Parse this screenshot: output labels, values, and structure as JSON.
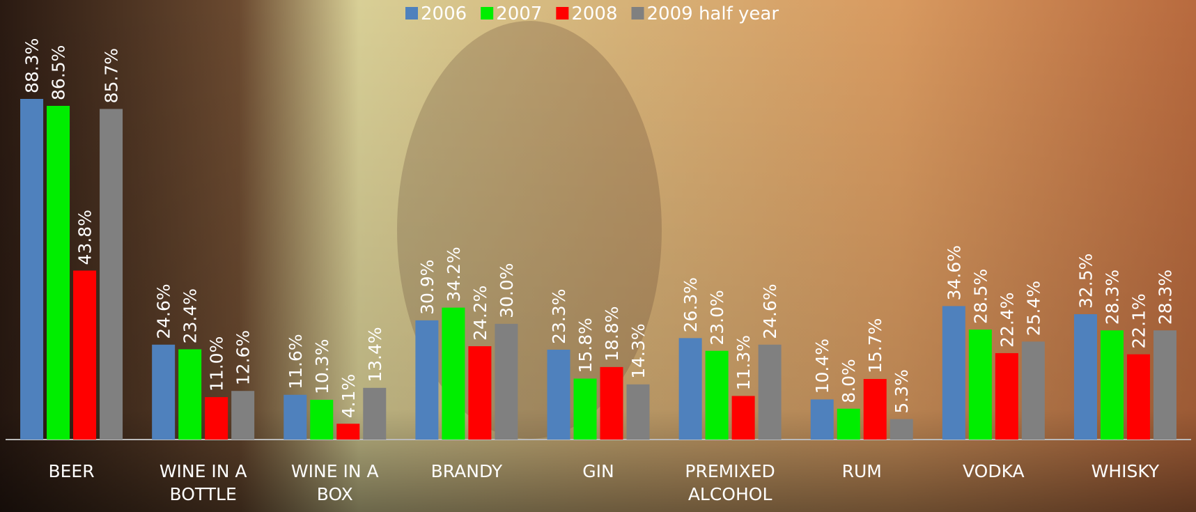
{
  "chart_data": {
    "type": "bar",
    "categories": [
      "BEER",
      "WINE IN A BOTTLE",
      "WINE IN A BOX",
      "BRANDY",
      "GIN",
      "PREMIXED ALCOHOL",
      "RUM",
      "VODKA",
      "WHISKY"
    ],
    "series": [
      {
        "name": "2006",
        "color": "#4f81bd",
        "values": [
          88.3,
          24.6,
          11.6,
          30.9,
          23.3,
          26.3,
          10.4,
          34.6,
          32.5
        ],
        "value_labels": [
          "88.3%",
          "24.6%",
          "11.6%",
          "30.9%",
          "23.3%",
          "26.3%",
          "10.4%",
          "34.6%",
          "32.5%"
        ]
      },
      {
        "name": "2007",
        "color": "#00ee00",
        "values": [
          86.5,
          23.4,
          10.3,
          34.2,
          15.8,
          23.0,
          8.0,
          28.5,
          28.3
        ],
        "value_labels": [
          "86.5%",
          "23.4%",
          "10.3%",
          "34.2%",
          "15.8%",
          "23.0%",
          "8.0%",
          "28.5%",
          "28.3%"
        ]
      },
      {
        "name": "2008",
        "color": "#ff0000",
        "values": [
          43.8,
          11.0,
          4.1,
          24.2,
          18.8,
          11.3,
          15.7,
          22.4,
          22.1
        ],
        "value_labels": [
          "43.8%",
          "11.0%",
          "4.1%",
          "24.2%",
          "18.8%",
          "11.3%",
          "15.7%",
          "22.4%",
          "22.1%"
        ]
      },
      {
        "name": "2009 half year",
        "color": "#808080",
        "values": [
          85.7,
          12.6,
          13.4,
          30.0,
          14.3,
          24.6,
          5.3,
          25.4,
          28.3
        ],
        "value_labels": [
          "85.7%",
          "12.6%",
          "13.4%",
          "30.0%",
          "14.3%",
          "24.6%",
          "5.3%",
          "25.4%",
          "28.3%"
        ]
      }
    ],
    "legend": "top"
  }
}
